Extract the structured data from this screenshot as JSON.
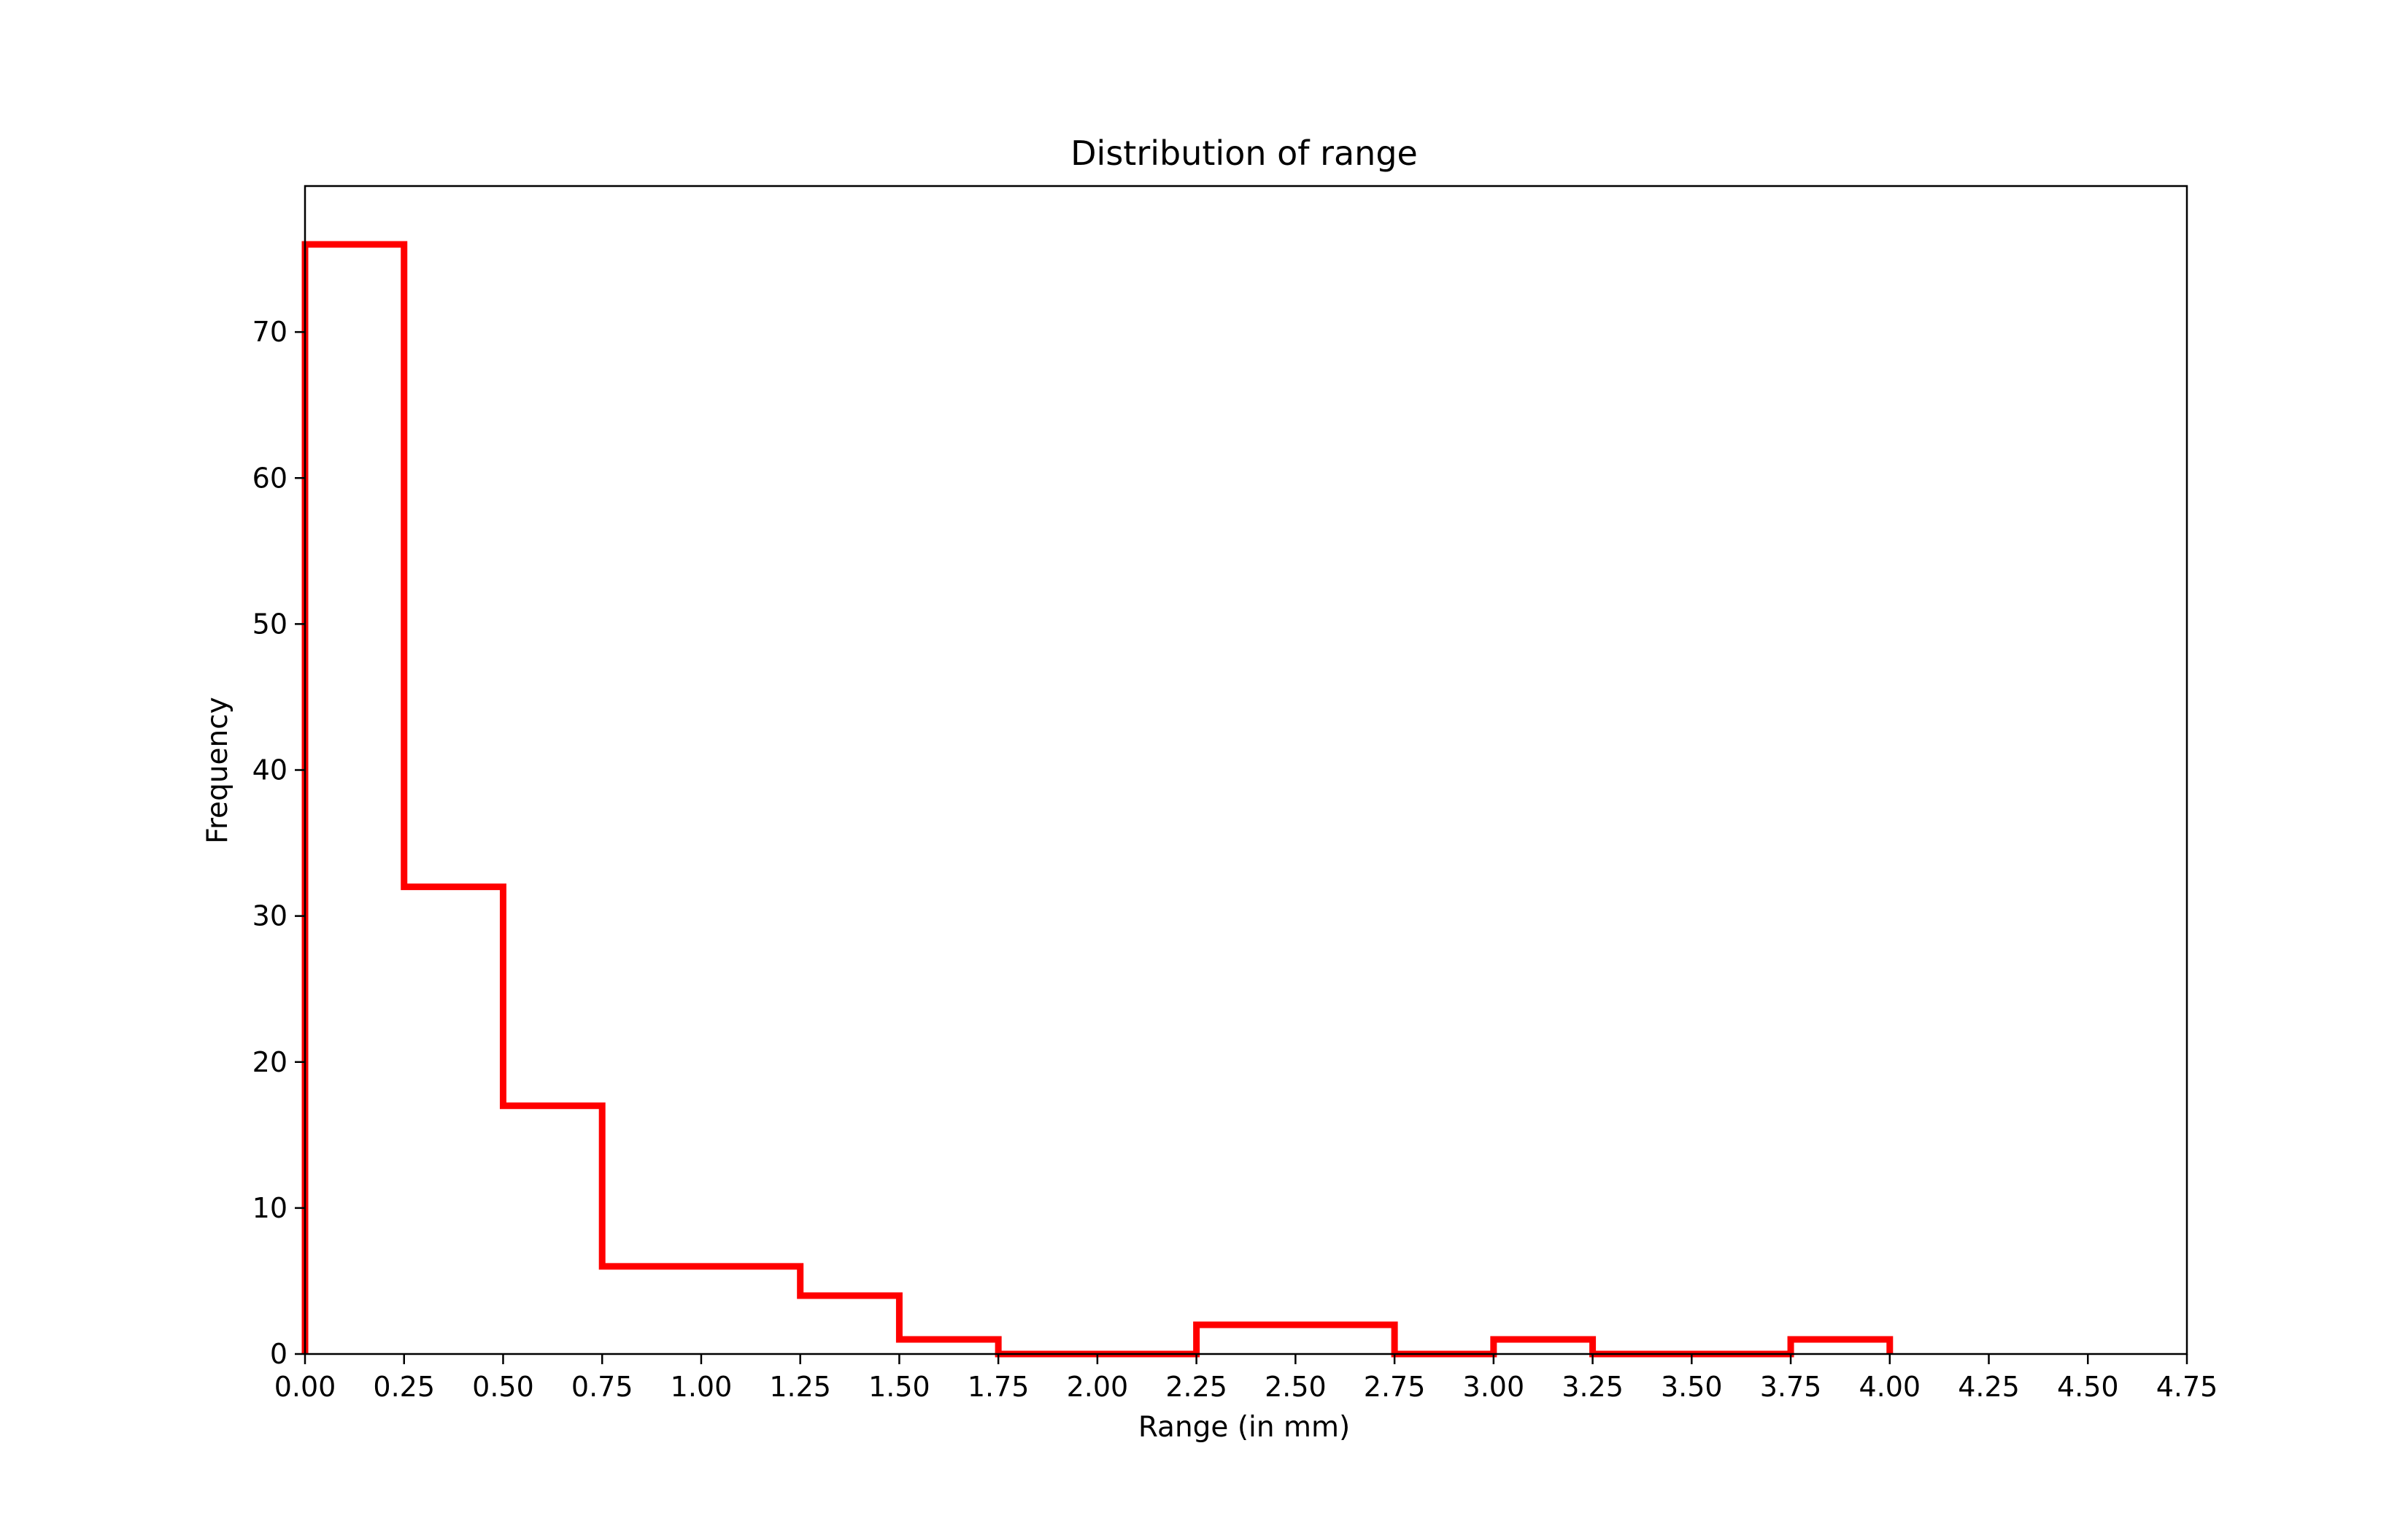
{
  "chart_data": {
    "type": "histogram",
    "title": "Distribution of range",
    "xlabel": "Range (in mm)",
    "ylabel": "Frequency",
    "bin_edges": [
      0.0,
      0.25,
      0.5,
      0.75,
      1.0,
      1.25,
      1.5,
      1.75,
      2.0,
      2.25,
      2.5,
      2.75,
      3.0,
      3.25,
      3.5,
      3.75,
      4.0
    ],
    "values": [
      76,
      32,
      17,
      6,
      6,
      4,
      1,
      0,
      0,
      2,
      2,
      0,
      1,
      0,
      0,
      1
    ],
    "xlim": [
      0,
      4.75
    ],
    "ylim": [
      0,
      80
    ],
    "xticks": [
      "0.00",
      "0.25",
      "0.50",
      "0.75",
      "1.00",
      "1.25",
      "1.50",
      "1.75",
      "2.00",
      "2.25",
      "2.50",
      "2.75",
      "3.00",
      "3.25",
      "3.50",
      "3.75",
      "4.00",
      "4.25",
      "4.50",
      "4.75"
    ],
    "yticks": [
      "0",
      "10",
      "20",
      "30",
      "40",
      "50",
      "60",
      "70"
    ],
    "histtype": "step",
    "color": "#ff0000",
    "grid": false,
    "legend": false
  }
}
